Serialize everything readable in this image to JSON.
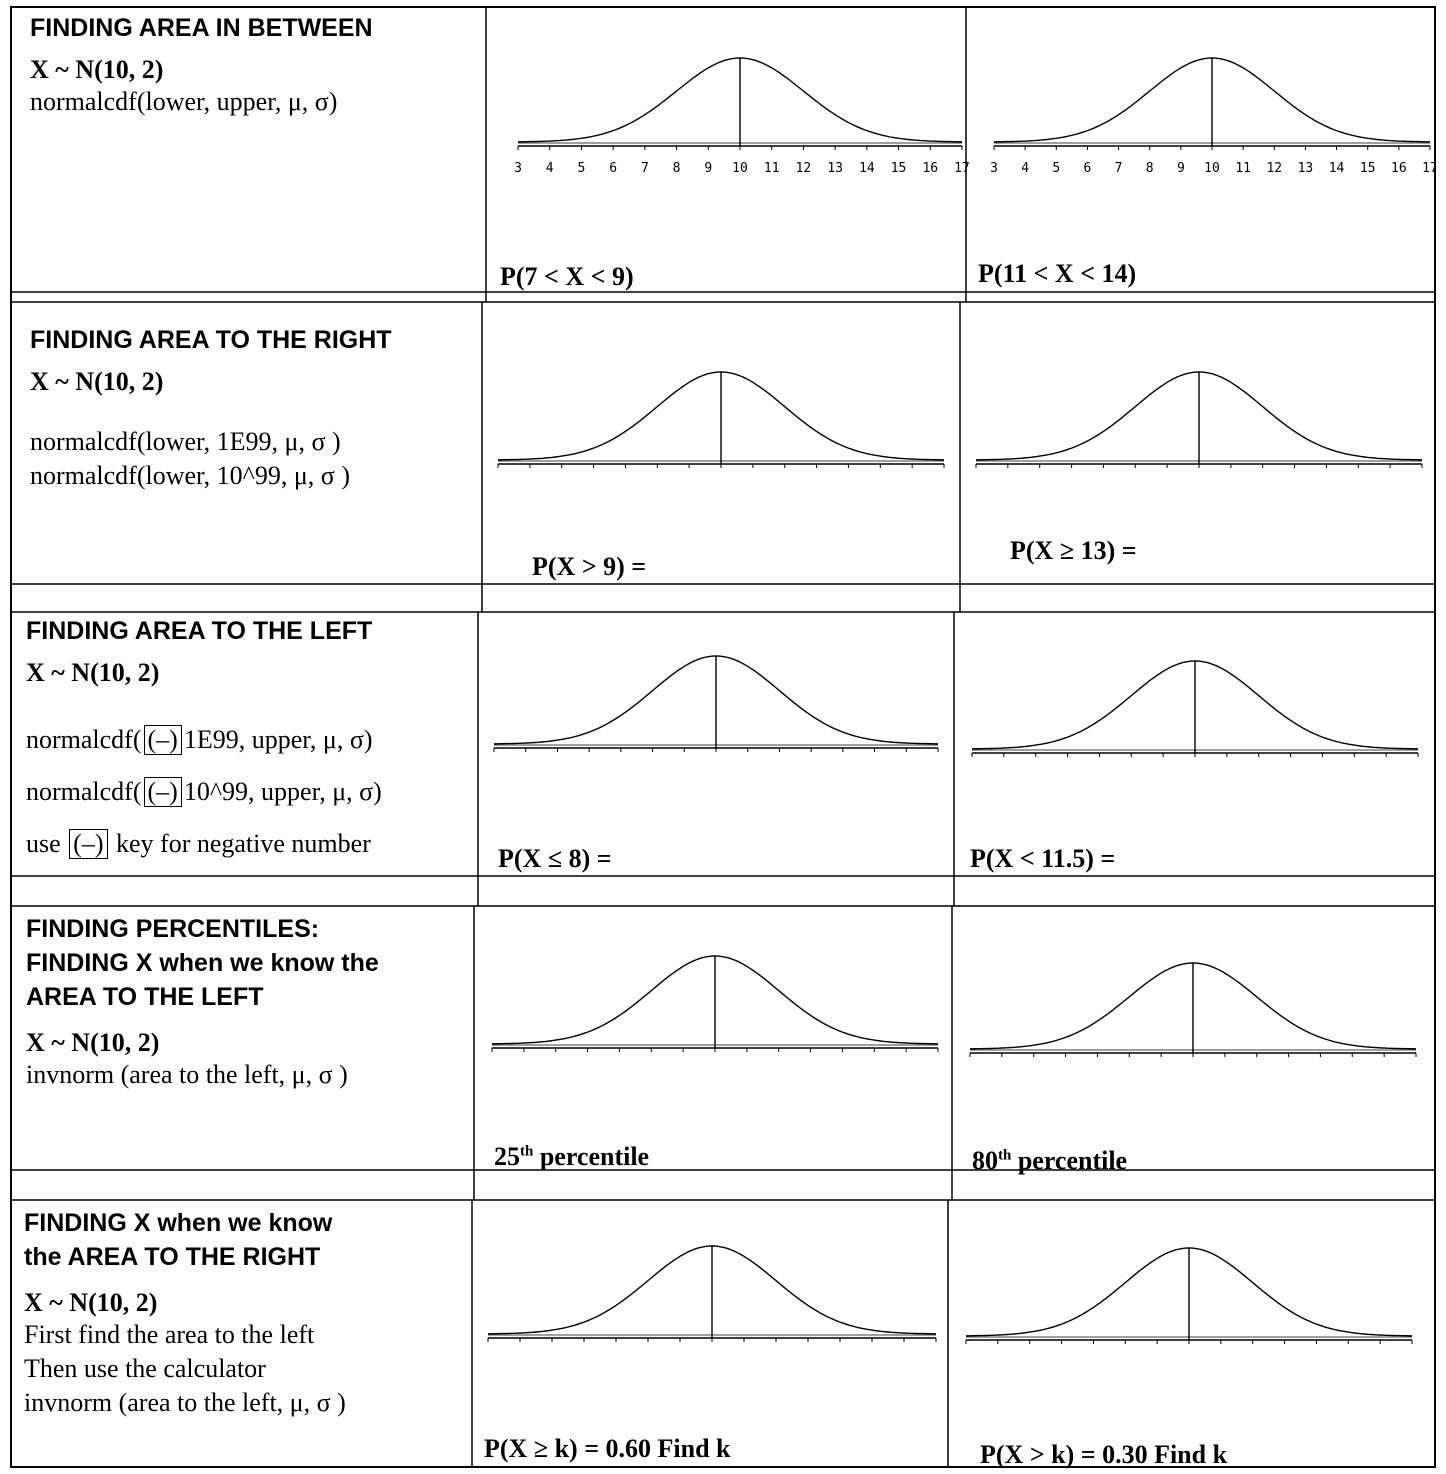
{
  "sections": [
    {
      "heading": "FINDING AREA IN BETWEEN",
      "dist": "X ~ N(10, 2)",
      "lines": [
        "normalcdf(lower, upper, μ, σ)"
      ],
      "labels": [
        "P(7 < X < 9)",
        "P(11 < X < 14)"
      ]
    },
    {
      "heading": "FINDING AREA TO THE RIGHT",
      "dist": "X ~ N(10, 2)",
      "lines": [
        "normalcdf(lower, 1E99, μ, σ )",
        "normalcdf(lower, 10^99, μ, σ )"
      ],
      "labels": [
        "P(X > 9) =",
        "P(X ≥ 13) ="
      ]
    },
    {
      "heading": "FINDING AREA TO THE LEFT",
      "dist": "X ~ N(10, 2)",
      "lines": [
        "normalcdf(",
        "1E99, upper, μ, σ)",
        "normalcdf(",
        "10^99, upper, μ, σ)",
        "use",
        "key for negative number"
      ],
      "key": "(–)",
      "labels": [
        "P(X ≤ 8) =",
        "P(X < 11.5) ="
      ]
    },
    {
      "heading": "FINDING PERCENTILES:\nFINDING X when we know  the\nAREA TO THE LEFT",
      "dist": "X ~ N(10, 2)",
      "lines": [
        "invnorm (area to the left, μ, σ )"
      ],
      "labels": [
        "25",
        "th",
        " percentile",
        "80",
        "th",
        " percentile"
      ]
    },
    {
      "heading": "FINDING X when we know\nthe AREA TO THE RIGHT",
      "dist": "X ~ N(10, 2)",
      "lines": [
        "First find the area to the left",
        "Then use the calculator",
        "invnorm (area to the left, μ, σ )"
      ],
      "labels": [
        "P(X ≥ k) = 0.60  Find k",
        "P(X > k) = 0.30  Find k"
      ]
    }
  ],
  "axis_ticks": [
    "3",
    "4",
    "5",
    "6",
    "7",
    "8",
    "9",
    "10",
    "11",
    "12",
    "13",
    "14",
    "15",
    "16",
    "17"
  ],
  "chart_data": {
    "type": "line",
    "title": "",
    "distribution": "normal",
    "mean": 10,
    "sd": 2,
    "xlim": [
      3,
      17
    ],
    "x_ticks": [
      3,
      4,
      5,
      6,
      7,
      8,
      9,
      10,
      11,
      12,
      13,
      14,
      15,
      16,
      17
    ]
  }
}
